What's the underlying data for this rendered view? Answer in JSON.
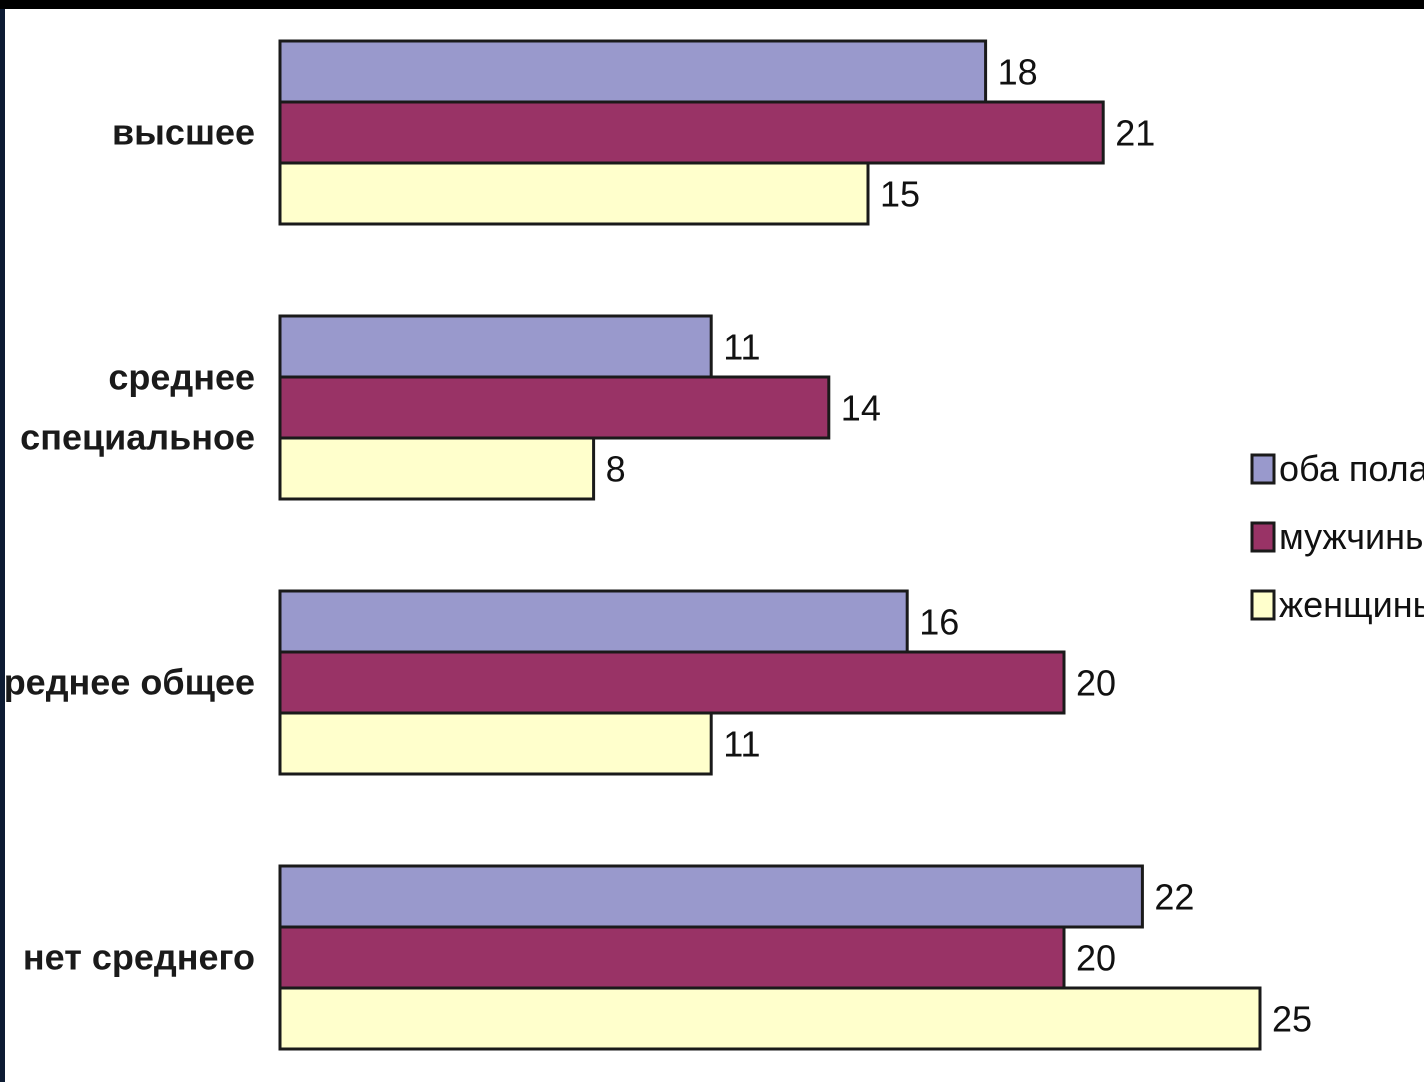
{
  "title_fragment": "",
  "chart_data": {
    "type": "bar",
    "orientation": "horizontal",
    "categories": [
      "высшее",
      "среднее специальное",
      "среднее общее",
      "нет среднего"
    ],
    "category_lines": [
      [
        "высшее"
      ],
      [
        "среднее",
        "специальное"
      ],
      [
        "среднее общее"
      ],
      [
        "нет среднего"
      ]
    ],
    "series": [
      {
        "name": "оба пола",
        "color": "#9999cc",
        "values": [
          18,
          11,
          16,
          22
        ]
      },
      {
        "name": "мужчины",
        "color": "#993366",
        "values": [
          21,
          14,
          20,
          20
        ]
      },
      {
        "name": "женщины",
        "color": "#ffffcc",
        "values": [
          15,
          8,
          11,
          25
        ]
      }
    ],
    "xlim": [
      0,
      25
    ],
    "grid": false,
    "legend_position": "right",
    "data_labels": true,
    "title": "",
    "xlabel": "",
    "ylabel": ""
  }
}
